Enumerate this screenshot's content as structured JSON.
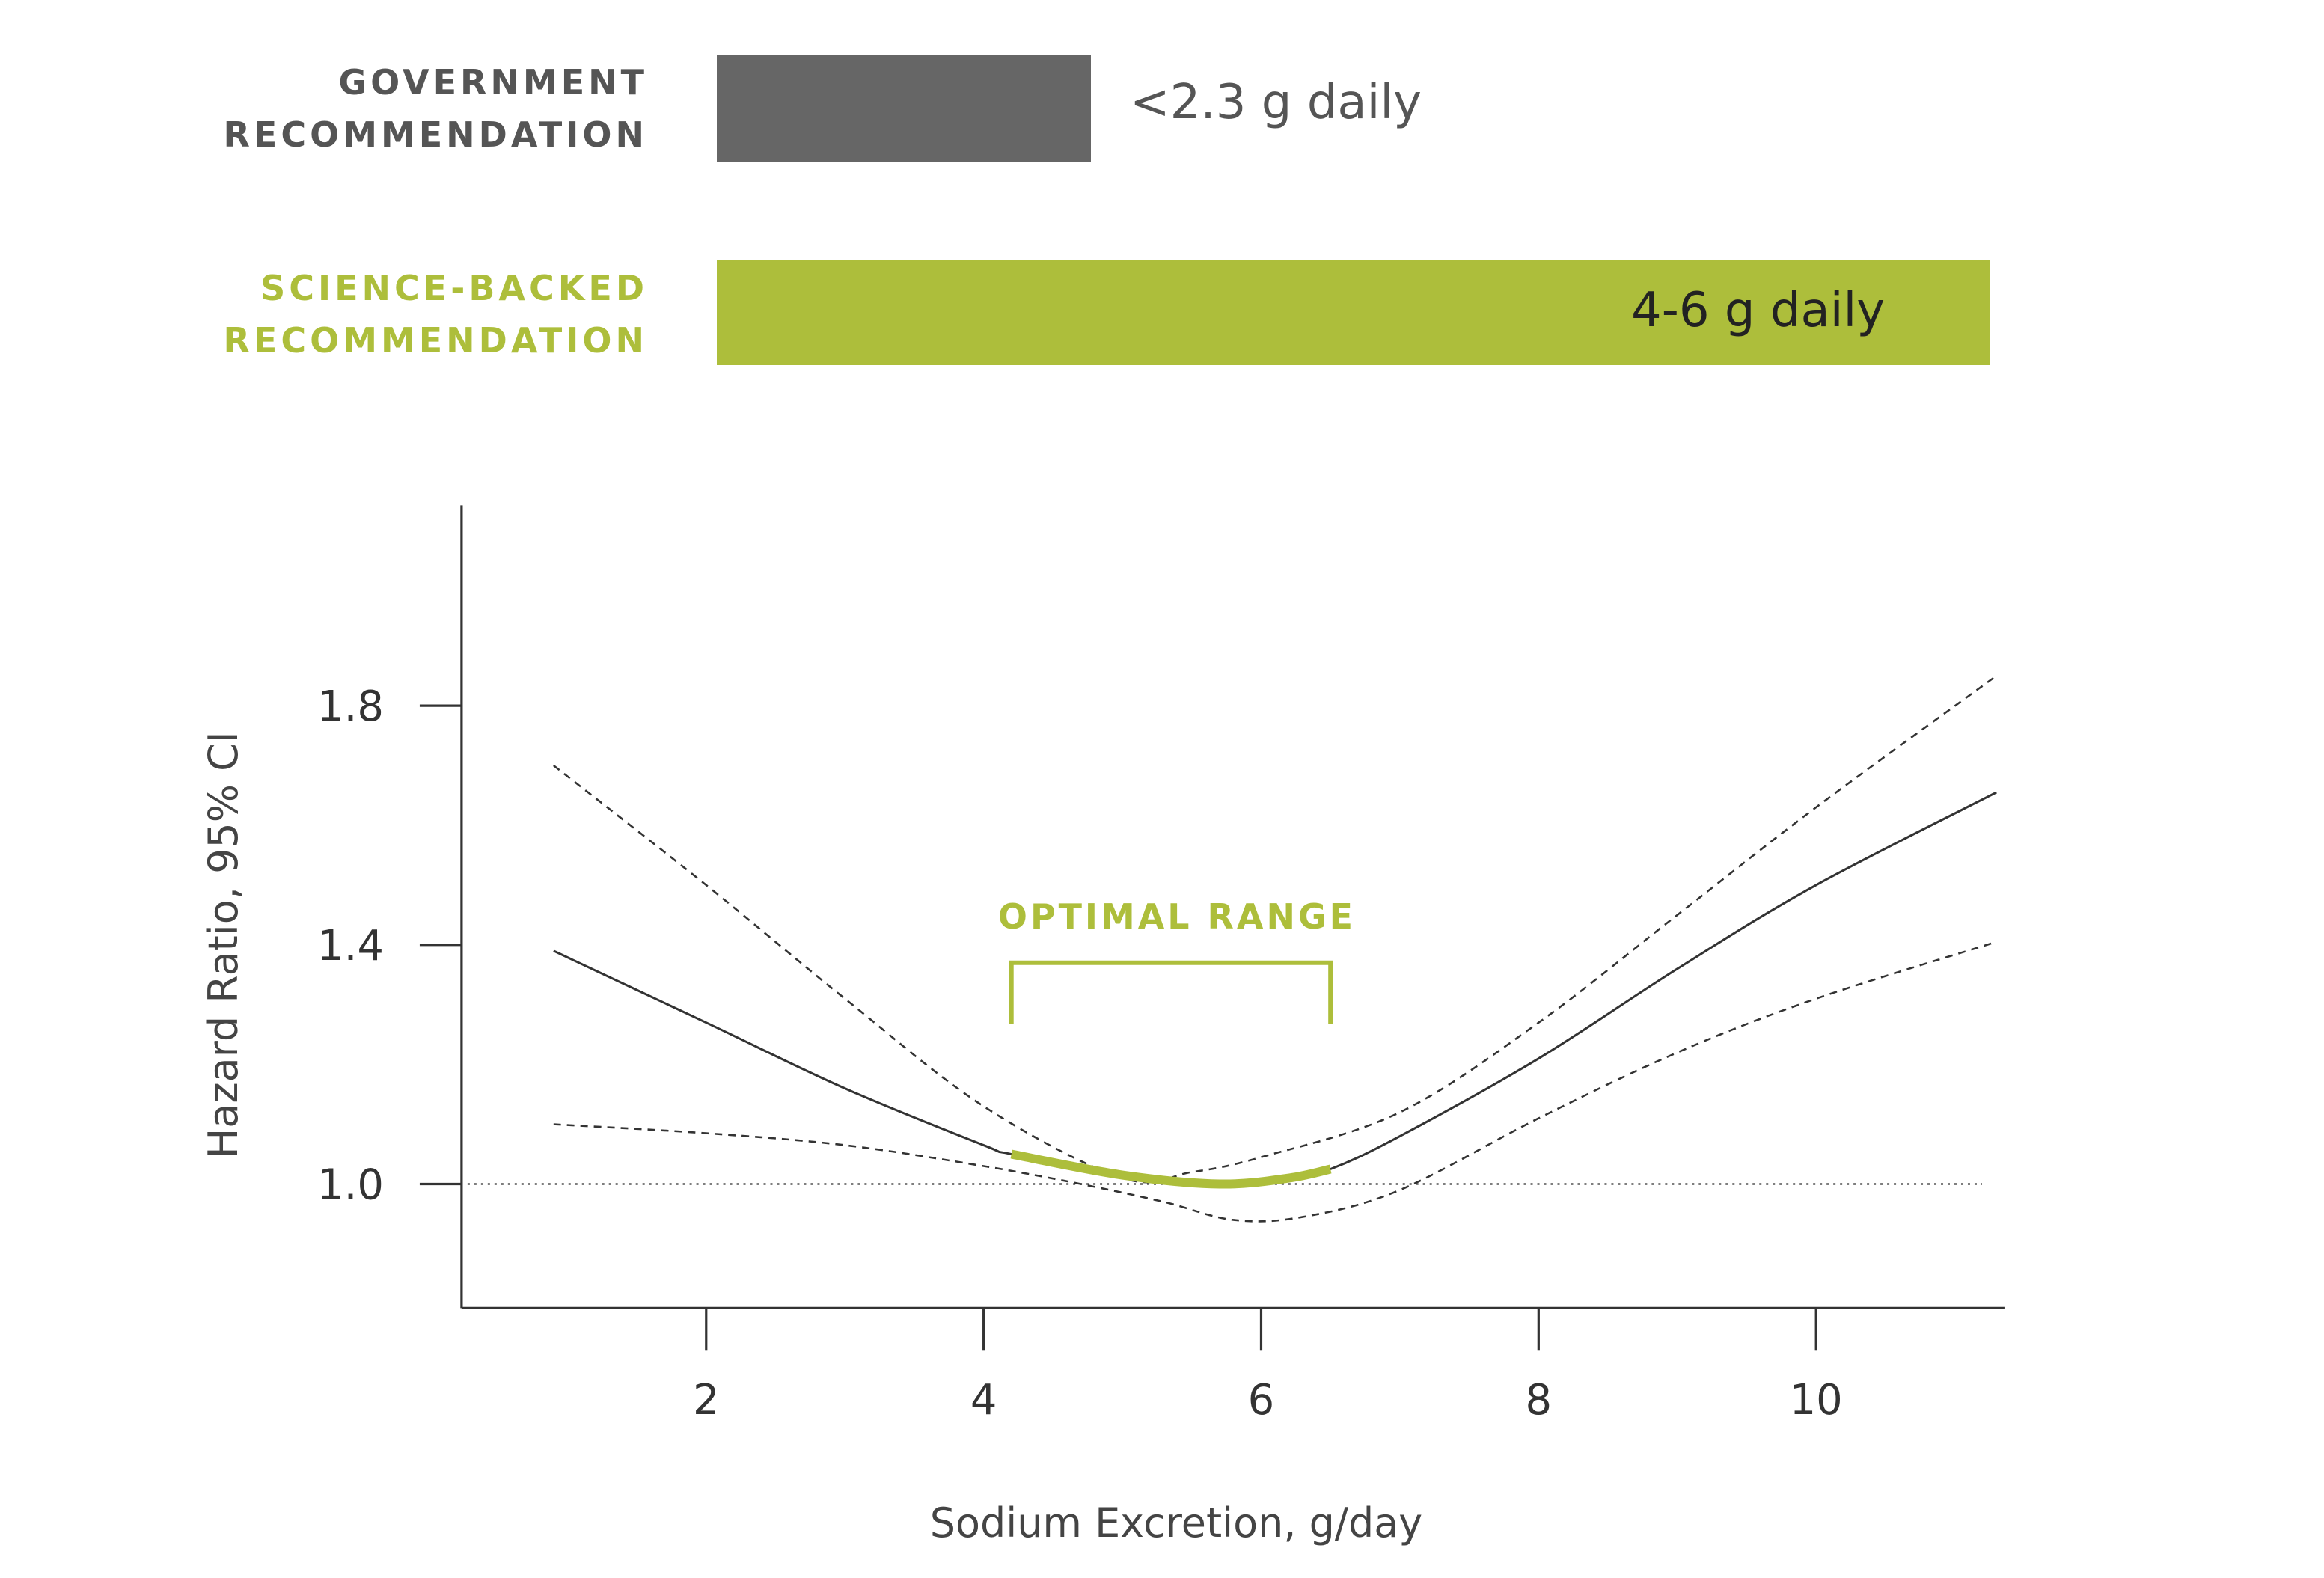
{
  "colors": {
    "accent": "#adbe3b",
    "gov_bar": "#666666",
    "text": "#444444",
    "line": "#333333"
  },
  "recommendations": [
    {
      "label_line1": "GOVERNMENT",
      "label_line2": "RECOMMENDATION",
      "value_text": "<2.3 g daily"
    },
    {
      "label_line1": "SCIENCE-BACKED",
      "label_line2": "RECOMMENDATION",
      "value_text": "4-6 g daily"
    }
  ],
  "chart_data": {
    "type": "line",
    "xlabel": "Sodium Excretion, g/day",
    "ylabel": "Hazard Ratio, 95% CI",
    "xlim": [
      0.2,
      11.4
    ],
    "ylim": [
      0.8,
      2.14
    ],
    "x_ticks": [
      2,
      4,
      6,
      8,
      10
    ],
    "x_tick_labels": [
      "2",
      "4",
      "6",
      "8",
      "10"
    ],
    "y_ticks": [
      1.0,
      1.4,
      1.8
    ],
    "y_tick_labels": [
      "1.0",
      "1.4",
      "1.8"
    ],
    "reference_line": 1.0,
    "annotation": {
      "text": "OPTIMAL RANGE",
      "x_start": 4.2,
      "x_end": 6.5
    },
    "series": [
      {
        "name": "Hazard ratio",
        "style": "solid",
        "points": [
          [
            0.9,
            1.39
          ],
          [
            2,
            1.27
          ],
          [
            3,
            1.16
          ],
          [
            4,
            1.065
          ],
          [
            4.2,
            1.05
          ],
          [
            5,
            1.015
          ],
          [
            5.7,
            1.0
          ],
          [
            6.2,
            1.01
          ],
          [
            6.5,
            1.025
          ],
          [
            7,
            1.08
          ],
          [
            8,
            1.21
          ],
          [
            9,
            1.36
          ],
          [
            10,
            1.5
          ],
          [
            11.3,
            1.655
          ]
        ]
      },
      {
        "name": "Upper 95% CI",
        "style": "dashed",
        "points": [
          [
            0.9,
            1.7
          ],
          [
            2,
            1.5
          ],
          [
            3,
            1.31
          ],
          [
            4,
            1.13
          ],
          [
            5,
            1.01
          ],
          [
            5.5,
            1.02
          ],
          [
            6,
            1.045
          ],
          [
            7,
            1.12
          ],
          [
            8,
            1.27
          ],
          [
            9,
            1.45
          ],
          [
            10,
            1.63
          ],
          [
            11.3,
            1.85
          ]
        ]
      },
      {
        "name": "Lower 95% CI",
        "style": "dashed",
        "points": [
          [
            0.9,
            1.1
          ],
          [
            2,
            1.085
          ],
          [
            3,
            1.065
          ],
          [
            4,
            1.03
          ],
          [
            4.7,
            1.0
          ],
          [
            5.3,
            0.97
          ],
          [
            5.8,
            0.94
          ],
          [
            6.3,
            0.945
          ],
          [
            7,
            0.99
          ],
          [
            8,
            1.11
          ],
          [
            9,
            1.22
          ],
          [
            10,
            1.31
          ],
          [
            11.3,
            1.405
          ]
        ]
      },
      {
        "name": "Optimal range",
        "style": "highlight",
        "points": [
          [
            4.2,
            1.05
          ],
          [
            5,
            1.015
          ],
          [
            5.7,
            1.0
          ],
          [
            6.2,
            1.01
          ],
          [
            6.5,
            1.025
          ]
        ]
      }
    ]
  }
}
